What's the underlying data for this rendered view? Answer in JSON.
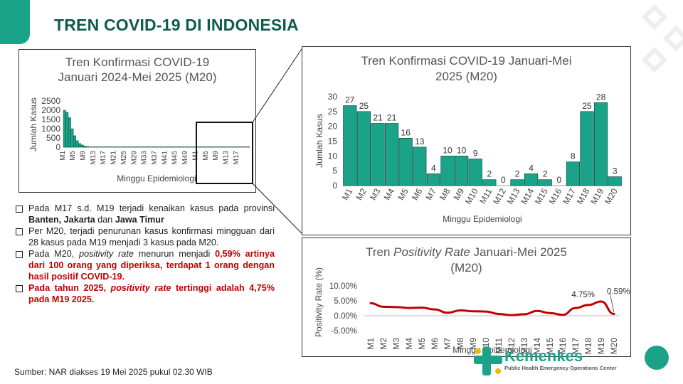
{
  "slide": {
    "title": "TREN COVID-19 DI INDONESIA",
    "source": "Sumber: NAR diakses 19 Mei 2025 pukul 02.30 WIB",
    "logo_name": "Kemenkes",
    "logo_sub": "Public Health Emergency Operations Center"
  },
  "colors": {
    "accent": "#1aa389",
    "dark_title": "#0f5a4d",
    "line": "#c00000",
    "bar": "#1aa389"
  },
  "bullets": [
    {
      "parts": [
        {
          "t": "Pada M17 s.d. M19 terjadi kenaikan kasus pada provinsi "
        },
        {
          "t": "Banten, Jakarta",
          "s": "b"
        },
        {
          "t": " dan "
        },
        {
          "t": "Jawa Timur",
          "s": "b"
        }
      ]
    },
    {
      "parts": [
        {
          "t": "Per M20, terjadi penurunan kasus konfirmasi mingguan dari 28 kasus pada M19 menjadi 3 kasus pada M20."
        }
      ]
    },
    {
      "parts": [
        {
          "t": "Pada M20, "
        },
        {
          "t": "positivity rate",
          "s": "i"
        },
        {
          "t": " menurun menjadi "
        },
        {
          "t": "0,59% artinya dari 100 orang yang diperiksa, terdapat 1 orang dengan hasil positif COVID-19.",
          "s": "red"
        }
      ]
    },
    {
      "parts": [
        {
          "t": "Pada tahun 2025, ",
          "s": "red"
        },
        {
          "t": "positivity rate",
          "s": "red-i"
        },
        {
          "t": " tertinggi adalah 4,75% pada M19 2025.",
          "s": "red"
        }
      ]
    }
  ],
  "chart_data": [
    {
      "type": "bar",
      "title_line1": "Tren Konfirmasi COVID-19",
      "title_line2": "Januari 2024-Mei 2025 (M20)",
      "xlabel": "Minggu Epidemiologi",
      "ylabel": "Jumlah Kasus",
      "ylim": [
        0,
        2500
      ],
      "yticks": [
        "2500",
        "2000",
        "1500",
        "1000",
        "500",
        "0"
      ],
      "xtick_labels": [
        "M1",
        "M5",
        "M9",
        "M13",
        "M17",
        "M21",
        "M25",
        "M29",
        "M33",
        "M37",
        "M41",
        "M45",
        "M49",
        "M1",
        "M5",
        "M9",
        "M13",
        "M17"
      ],
      "values": [
        2000,
        1900,
        1600,
        1000,
        620,
        350,
        200,
        120,
        70,
        40,
        25,
        15,
        10,
        8,
        6,
        5,
        4,
        4,
        3,
        3,
        3,
        3,
        3,
        3,
        3,
        3,
        3,
        3,
        3,
        3,
        5,
        8,
        8,
        6,
        4,
        3,
        3,
        3,
        3,
        3,
        3,
        3,
        3,
        3,
        3,
        4,
        5,
        6,
        8,
        6,
        5,
        4,
        3,
        3,
        3,
        3,
        3,
        3,
        3,
        3,
        3,
        3,
        3,
        3,
        3,
        3,
        3,
        3,
        3,
        3,
        4,
        5,
        3
      ],
      "highlight_label": "zoom-box M1-M20 2025"
    },
    {
      "type": "bar",
      "title_line1": "Tren Konfirmasi COVID-19 Januari-Mei",
      "title_line2": "2025 (M20)",
      "xlabel": "Minggu Epidemiologi",
      "ylabel": "Jumlah Kasus",
      "ylim": [
        0,
        30
      ],
      "yticks": [
        "30",
        "25",
        "20",
        "15",
        "10",
        "5",
        "0"
      ],
      "categories": [
        "M1",
        "M2",
        "M3",
        "M4",
        "M5",
        "M6",
        "M7",
        "M8",
        "M9",
        "M10",
        "M11",
        "M12",
        "M13",
        "M14",
        "M15",
        "M16",
        "M17",
        "M18",
        "M19",
        "M20"
      ],
      "values": [
        27,
        25,
        21,
        21,
        16,
        13,
        4,
        10,
        10,
        9,
        2,
        0,
        2,
        4,
        2,
        0,
        8,
        25,
        28,
        3
      ],
      "data_labels": [
        "27",
        "25",
        "21",
        "21",
        "16",
        "13",
        "4",
        "10",
        "10",
        "9",
        "2",
        "0",
        "2",
        "4",
        "2",
        "0",
        "8",
        "25",
        "28",
        "3"
      ]
    },
    {
      "type": "line",
      "title_pre": "Tren ",
      "title_italic": "Positivity Rate",
      "title_post": " Januari-Mei 2025",
      "title_line2": "(M20)",
      "xlabel": "Minggu Epidemiologi",
      "ylabel": "Positivity Rate (%)",
      "ylim": [
        -5,
        10
      ],
      "yticks": [
        "10.00%",
        "5.00%",
        "0.00%",
        "-5.00%"
      ],
      "categories": [
        "M1",
        "M2",
        "M3",
        "M4",
        "M5",
        "M6",
        "M7",
        "M8",
        "M9",
        "M10",
        "M11",
        "M12",
        "M13",
        "M14",
        "M15",
        "M16",
        "M17",
        "M18",
        "M19",
        "M20"
      ],
      "values": [
        4.2,
        3.0,
        2.9,
        2.6,
        2.7,
        2.1,
        1.0,
        1.8,
        1.5,
        1.4,
        0.6,
        0.2,
        0.5,
        1.6,
        0.9,
        0.3,
        2.6,
        3.6,
        4.75,
        0.59
      ],
      "annotations": [
        {
          "label": "4.75%",
          "index": 18
        },
        {
          "label": "0.59%",
          "index": 19
        }
      ]
    }
  ]
}
